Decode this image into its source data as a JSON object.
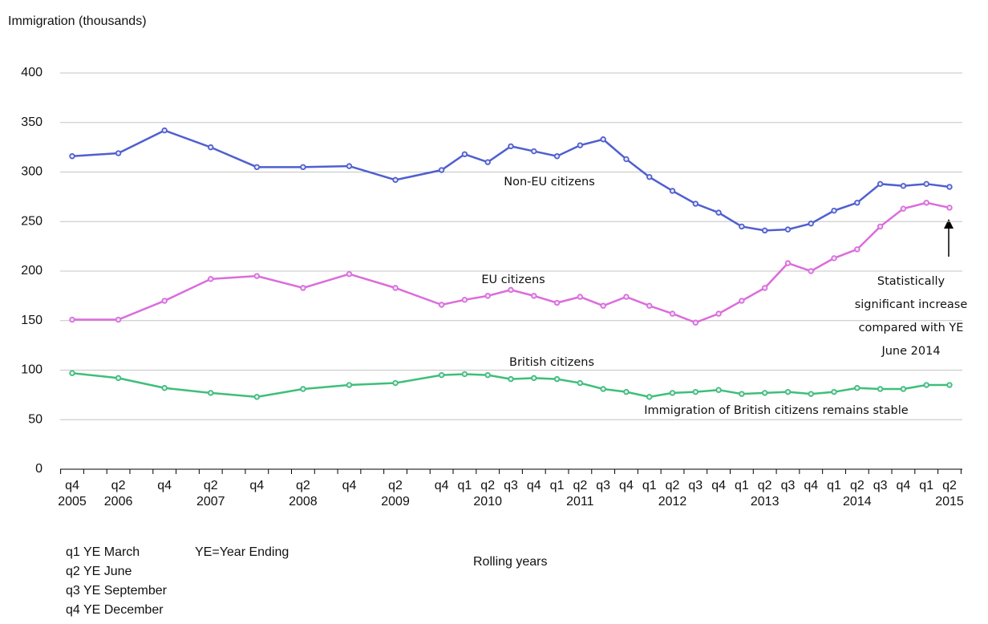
{
  "chart_data": {
    "type": "line",
    "y_label": "Immigration (thousands)",
    "x_label": "Rolling years",
    "categories": [
      "q4",
      "q2",
      "q4",
      "q2",
      "q4",
      "q2",
      "q4",
      "q2",
      "q4",
      "q1",
      "q2",
      "q3",
      "q4",
      "q1",
      "q2",
      "q3",
      "q4",
      "q1",
      "q2",
      "q3",
      "q4",
      "q1",
      "q2",
      "q3",
      "q4",
      "q1",
      "q2",
      "q3",
      "q4",
      "q1",
      "q2"
    ],
    "category_years": [
      "2005",
      "2006",
      null,
      "2007",
      null,
      "2008",
      null,
      "2009",
      null,
      null,
      "2010",
      null,
      null,
      null,
      "2011",
      null,
      null,
      null,
      "2012",
      null,
      null,
      null,
      "2013",
      null,
      null,
      null,
      "2014",
      null,
      null,
      null,
      "2015"
    ],
    "series": [
      {
        "name": "Non-EU citizens",
        "color": "#4f5fcf",
        "values": [
          316,
          319,
          342,
          325,
          305,
          305,
          306,
          292,
          302,
          318,
          310,
          326,
          321,
          316,
          327,
          333,
          313,
          295,
          281,
          268,
          259,
          245,
          241,
          242,
          248,
          261,
          269,
          288,
          286,
          288,
          285
        ]
      },
      {
        "name": "EU citizens",
        "color": "#dc6cdc",
        "values": [
          151,
          151,
          170,
          192,
          195,
          183,
          197,
          183,
          166,
          171,
          175,
          181,
          175,
          168,
          174,
          165,
          174,
          165,
          157,
          148,
          157,
          170,
          183,
          208,
          200,
          213,
          222,
          245,
          263,
          269,
          264
        ]
      },
      {
        "name": "British citizens",
        "color": "#3dbf7a",
        "values": [
          97,
          92,
          82,
          77,
          73,
          81,
          85,
          87,
          95,
          96,
          95,
          91,
          92,
          91,
          87,
          81,
          78,
          73,
          77,
          78,
          80,
          76,
          77,
          78,
          76,
          78,
          82,
          81,
          81,
          85,
          85
        ]
      }
    ],
    "ylim": [
      0,
      400
    ],
    "yticks": [
      0,
      50,
      100,
      150,
      200,
      250,
      300,
      350,
      400
    ],
    "grid": true,
    "annotations": [
      "Non-EU citizens",
      "EU citizens",
      "British citizens",
      "Immigration of British citizens remains stable",
      [
        "Statistically",
        "significant increase",
        "compared with YE",
        "June 2014"
      ]
    ],
    "notes": [
      "q1 YE March",
      "YE=Year Ending",
      "q2 YE June",
      "q3 YE September",
      "q4 YE December"
    ]
  }
}
